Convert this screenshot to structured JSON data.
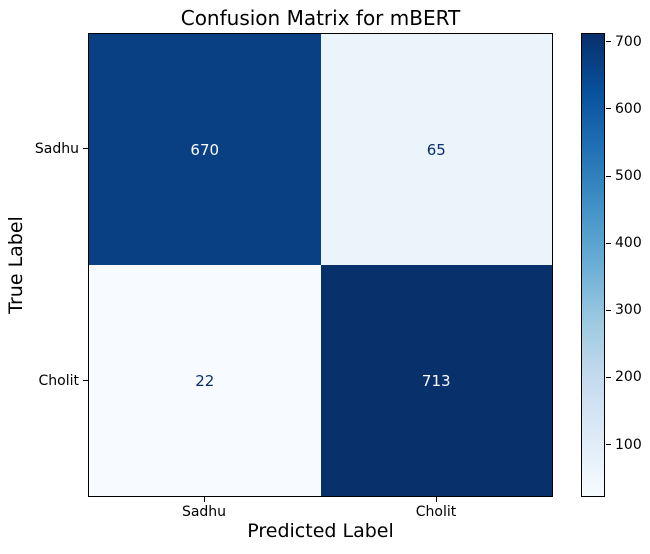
{
  "figure": {
    "background": "#ffffff"
  },
  "chart_data": {
    "type": "heatmap",
    "title": "Confusion Matrix for mBERT",
    "xlabel": "Predicted Label",
    "ylabel": "True Label",
    "x_categories": [
      "Sadhu",
      "Cholit"
    ],
    "y_categories": [
      "Sadhu",
      "Cholit"
    ],
    "matrix": [
      [
        670,
        65
      ],
      [
        22,
        713
      ]
    ],
    "vmin": 22,
    "vmax": 713,
    "colormap": "Blues",
    "grid": "off",
    "cell_colors": [
      [
        "#084083",
        "#ebf3fb"
      ],
      [
        "#f7fbff",
        "#08306b"
      ]
    ],
    "cell_text_colors": [
      [
        "#ffffff",
        "#08306b"
      ],
      [
        "#08306b",
        "#ffffff"
      ]
    ],
    "colorbar": {
      "position": "right",
      "ticks": [
        100,
        200,
        300,
        400,
        500,
        600,
        700
      ],
      "gradient_stops_low_to_high": [
        "#f7fbff",
        "#deebf7",
        "#c6dbef",
        "#9ecae1",
        "#6baed6",
        "#4292c6",
        "#2171b5",
        "#08519c",
        "#08306b"
      ]
    }
  }
}
